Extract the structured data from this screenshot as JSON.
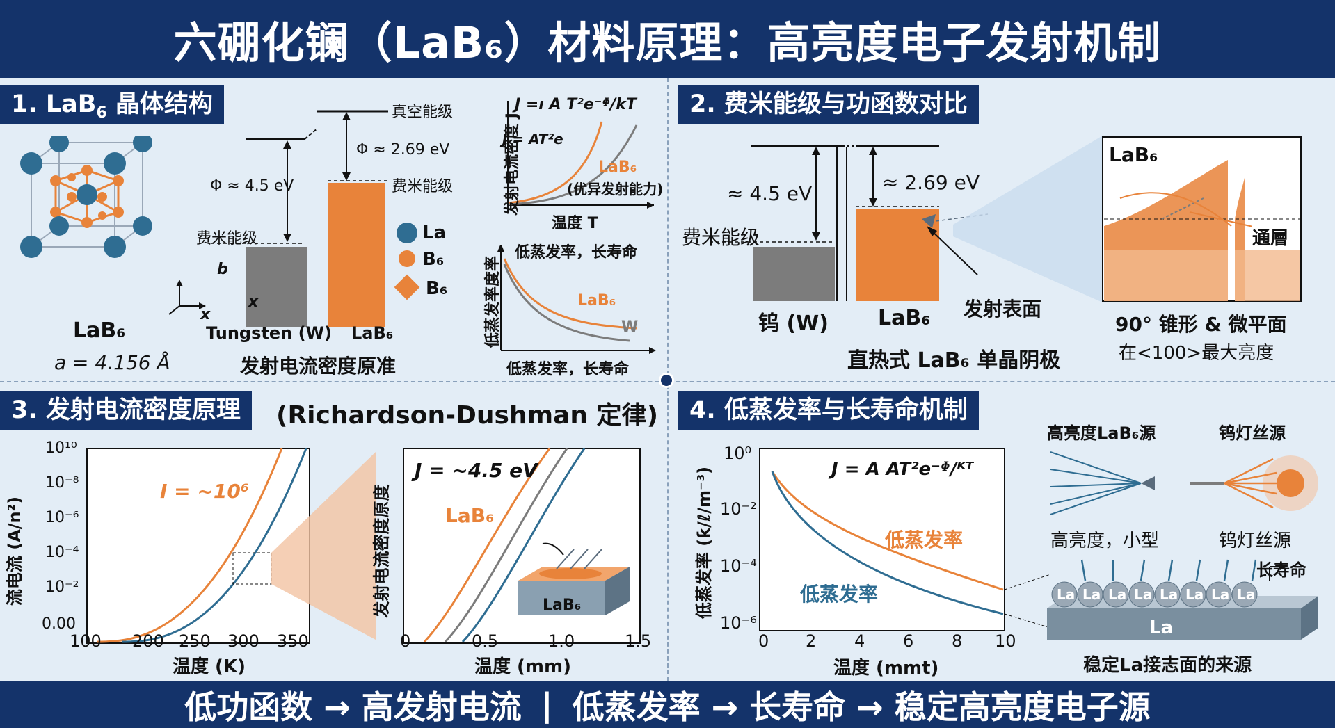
{
  "header": {
    "title": "六硼化镧（LaB₆）材料原理：高亮度电子发射机制"
  },
  "footer": {
    "left": "低功函数 → 高发射电流",
    "sep": "|",
    "right": "低蒸发率 → 长寿命 → 稳定高亮度电子源"
  },
  "panel1": {
    "title_pre": "1. LaB",
    "title_sub": "6",
    "title_post": " 晶体结构",
    "crystal_name": "LaB₆",
    "lattice": "a = 4.156 Å",
    "axis_b": "b",
    "axis_x1": "x",
    "axis_x2": "x",
    "vacuum_level": "真空能级",
    "fermi_level_left": "费米能级",
    "fermi_level_right": "费米能级",
    "phi_w": "Φ ≈ 4.5 eV",
    "phi_lab6": "Φ ≈ 2.69 eV",
    "tungsten": "Tungsten (W)",
    "lab6": "LaB₆",
    "caption": "发射电流密度原准",
    "legend": [
      {
        "label": "La",
        "color": "#2f6d92"
      },
      {
        "label": "B₆",
        "color": "#e8833a"
      },
      {
        "label": "B₆",
        "color": "#e8833a"
      }
    ],
    "chart_a": {
      "formula_top": "J =ı A T²e⁻ᶲ/kT",
      "formula_inner": "J = AT²e",
      "ylabel": "发射电流密度 J",
      "xlabel": "温度 T",
      "lab6_label": "LaB₆",
      "lab6_note": "(优异发射能力)"
    },
    "chart_b": {
      "title": "低蒸发率，长寿命",
      "ylabel": "低蒸发率度率",
      "xlabel": "低蒸发率，长寿命",
      "lab6_label": "LaB₆",
      "w_label": "W"
    }
  },
  "panel2": {
    "title": "2. 费米能级与功函数对比",
    "phi_w": "≈ 4.5 eV",
    "phi_lab6": "≈ 2.69 eV",
    "fermi": "费米能级",
    "w_label": "钨 (W)",
    "lab6_label": "LaB₆",
    "emit_surface": "发射表面",
    "caption": "直热式 LaB₆ 单晶阴极",
    "inset_title": "LaB₆",
    "tunnel": "通層",
    "tip_title": "90° 锥形 & 微平面",
    "tip_note": "在<100>最大亮度"
  },
  "panel3": {
    "title": "3. 发射电流密度原理",
    "title_tail": "(Richardson-Dushman 定律)",
    "chart_left": {
      "ylabel": "流电流 (A/n²)",
      "xlabel": "温度 (K)",
      "annotation": "I = ~10⁶",
      "yticks": [
        "10¹⁰",
        "10⁻⁸",
        "10⁻⁶",
        "10⁻⁴",
        "10⁻²",
        "0.00"
      ],
      "xticks": [
        "100",
        "200",
        "250",
        "300",
        "350"
      ]
    },
    "chart_right": {
      "ylabel": "发射电流密度原度",
      "xlabel": "温度 (mm)",
      "formula": "J = ~4.5 eV",
      "lab6_label": "LaB₆",
      "block_label": "LaB₆",
      "xticks": [
        "0",
        "0.5",
        "1.0",
        "1.5"
      ]
    }
  },
  "panel4": {
    "title": "4. 低蒸发率与长寿命机制",
    "chart": {
      "ylabel": "低蒸发率 (ƙ/ℓ/m⁻³)",
      "xlabel": "温度 (mmt)",
      "formula": "J = A AT²e⁻ᶲ/ᴷᵀ",
      "series_orange": "低蒸发率",
      "series_blue": "低蒸发率",
      "yticks": [
        "10⁰",
        "10⁻²",
        "10⁻⁴",
        "10⁻⁶"
      ],
      "xticks": [
        "0",
        "2",
        "4",
        "6",
        "8",
        "10"
      ]
    },
    "source_a": "高亮度LaB₆源",
    "source_a_note": "高亮度，小型",
    "source_b": "钨灯丝源",
    "source_b_note": "钨灯丝源",
    "long_life": "长寿命",
    "atoms": [
      "La",
      "La",
      "La",
      "La",
      "La",
      "La",
      "La",
      "La"
    ],
    "base": "La",
    "caption": "稳定La接志面的来源"
  },
  "colors": {
    "navy": "#14336a",
    "orange": "#e8833a",
    "blue": "#2f6d92",
    "gray": "#7c7c7c"
  }
}
